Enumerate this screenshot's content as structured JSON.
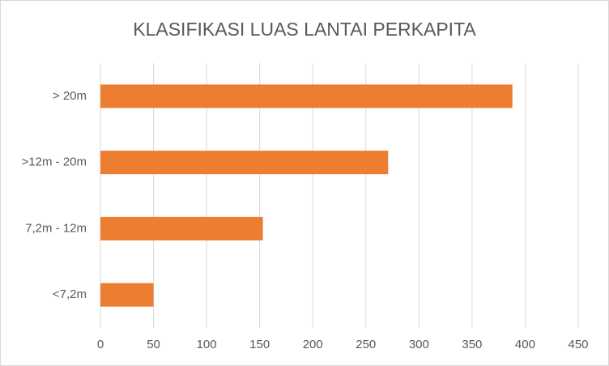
{
  "chart_data": {
    "type": "hbar",
    "title": "KLASIFIKASI LUAS LANTAI PERKAPITA",
    "categories": [
      "> 20m",
      ">12m - 20m",
      "7,2m - 12m",
      "<7,2m"
    ],
    "values": [
      388,
      271,
      153,
      50
    ],
    "color": "#ed7d31",
    "xlim": [
      0,
      450
    ],
    "xticks": [
      0,
      50,
      100,
      150,
      200,
      250,
      300,
      350,
      400,
      450
    ],
    "grid": true
  }
}
